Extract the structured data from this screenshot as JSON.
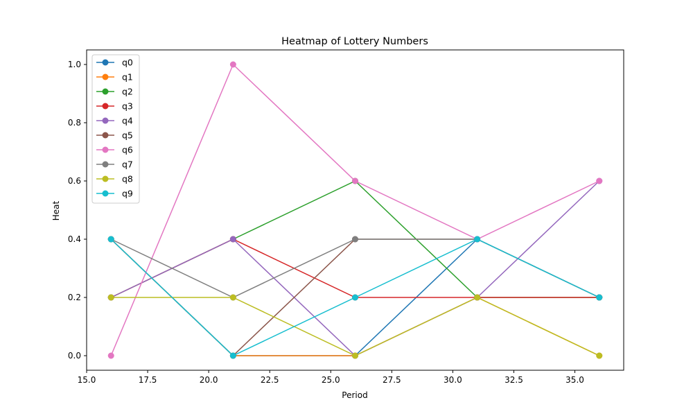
{
  "chart_data": {
    "type": "line",
    "title": "Heatmap of Lottery Numbers",
    "xlabel": "Period",
    "ylabel": "Heat",
    "xlim": [
      15.0,
      37.0
    ],
    "ylim": [
      -0.05,
      1.05
    ],
    "x": [
      16,
      21,
      26,
      31,
      36
    ],
    "xticks": [
      15.0,
      17.5,
      20.0,
      22.5,
      25.0,
      27.5,
      30.0,
      32.5,
      35.0
    ],
    "xtick_labels": [
      "15.0",
      "17.5",
      "20.0",
      "22.5",
      "25.0",
      "27.5",
      "30.0",
      "32.5",
      "35.0"
    ],
    "yticks": [
      0.0,
      0.2,
      0.4,
      0.6,
      0.8,
      1.0
    ],
    "ytick_labels": [
      "0.0",
      "0.2",
      "0.4",
      "0.6",
      "0.8",
      "1.0"
    ],
    "grid": false,
    "legend_position": "upper-left",
    "series": [
      {
        "name": "q0",
        "color": "#1f77b4",
        "values": [
          0.4,
          0.0,
          0.0,
          0.4,
          0.2
        ]
      },
      {
        "name": "q1",
        "color": "#ff7f0e",
        "values": [
          0.4,
          0.0,
          0.0,
          0.2,
          0.0
        ]
      },
      {
        "name": "q2",
        "color": "#2ca02c",
        "values": [
          0.2,
          0.4,
          0.6,
          0.2,
          0.2
        ]
      },
      {
        "name": "q3",
        "color": "#d62728",
        "values": [
          0.2,
          0.4,
          0.2,
          0.2,
          0.2
        ]
      },
      {
        "name": "q4",
        "color": "#9467bd",
        "values": [
          0.2,
          0.4,
          0.0,
          0.2,
          0.6
        ]
      },
      {
        "name": "q5",
        "color": "#8c564b",
        "values": [
          0.4,
          0.0,
          0.4,
          0.4,
          0.2
        ]
      },
      {
        "name": "q6",
        "color": "#e377c2",
        "values": [
          0.0,
          1.0,
          0.6,
          0.4,
          0.6
        ]
      },
      {
        "name": "q7",
        "color": "#7f7f7f",
        "values": [
          0.4,
          0.2,
          0.4,
          0.4,
          0.2
        ]
      },
      {
        "name": "q8",
        "color": "#bcbd22",
        "values": [
          0.2,
          0.2,
          0.0,
          0.2,
          0.0
        ]
      },
      {
        "name": "q9",
        "color": "#17becf",
        "values": [
          0.4,
          0.0,
          0.2,
          0.4,
          0.2
        ]
      }
    ]
  }
}
